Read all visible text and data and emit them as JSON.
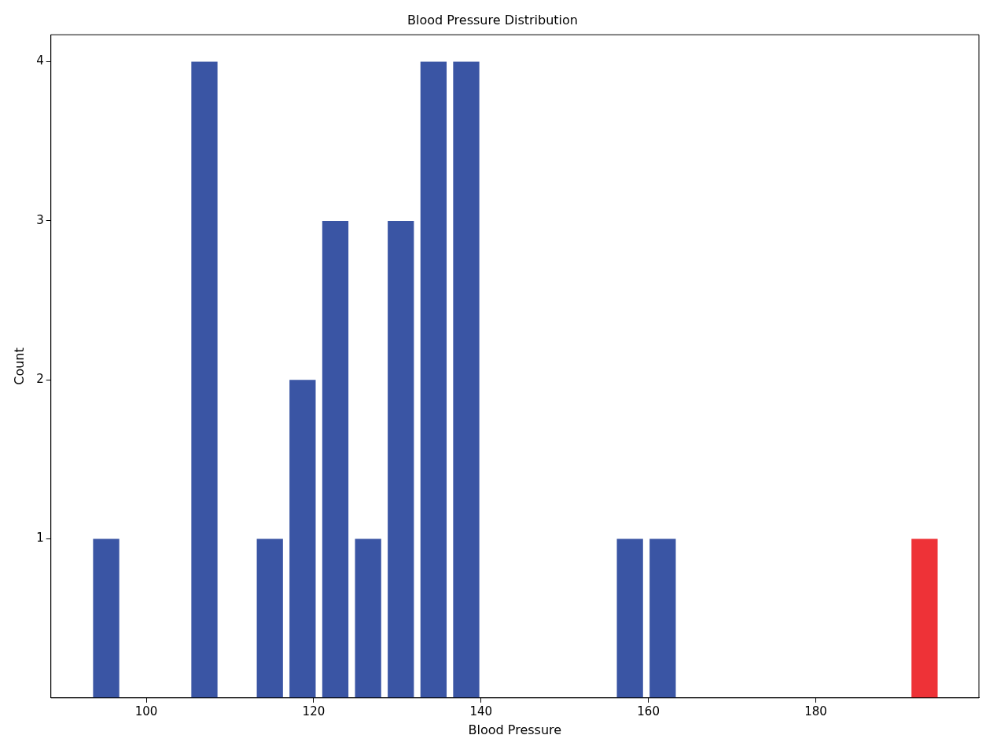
{
  "chart_data": {
    "type": "histogram",
    "title": "Blood Pressure Distribution",
    "xlabel": "Blood Pressure",
    "ylabel": "Count",
    "bins": [
      93.25,
      97.16,
      101.07,
      104.99,
      108.9,
      112.81,
      116.72,
      120.63,
      124.55,
      128.46,
      132.37,
      136.28,
      140.19,
      144.11,
      148.02,
      151.93,
      155.84,
      159.75,
      163.67,
      167.58,
      171.49,
      175.4,
      179.31,
      183.23,
      187.14,
      191.05,
      194.96
    ],
    "values": [
      1,
      0,
      0,
      4,
      0,
      1,
      2,
      3,
      1,
      3,
      4,
      4,
      0,
      0,
      0,
      0,
      1,
      1,
      0,
      0,
      0,
      0,
      0,
      0,
      0,
      1
    ],
    "colors": [
      "#3a55a4",
      "#3a55a4",
      "#3a55a4",
      "#3a55a4",
      "#3a55a4",
      "#3a55a4",
      "#3a55a4",
      "#3a55a4",
      "#3a55a4",
      "#3a55a4",
      "#3a55a4",
      "#3a55a4",
      "#3a55a4",
      "#3a55a4",
      "#3a55a4",
      "#3a55a4",
      "#3a55a4",
      "#3a55a4",
      "#3a55a4",
      "#3a55a4",
      "#3a55a4",
      "#3a55a4",
      "#3a55a4",
      "#3a55a4",
      "#3a55a4",
      "#ee3237"
    ],
    "xlim": [
      88.6,
      199.5
    ],
    "xticks": [
      100,
      120,
      140,
      160,
      180
    ],
    "ylim": [
      0,
      4.17
    ],
    "yticks": [
      1,
      2,
      3,
      4
    ],
    "grid": false,
    "legend": false
  }
}
